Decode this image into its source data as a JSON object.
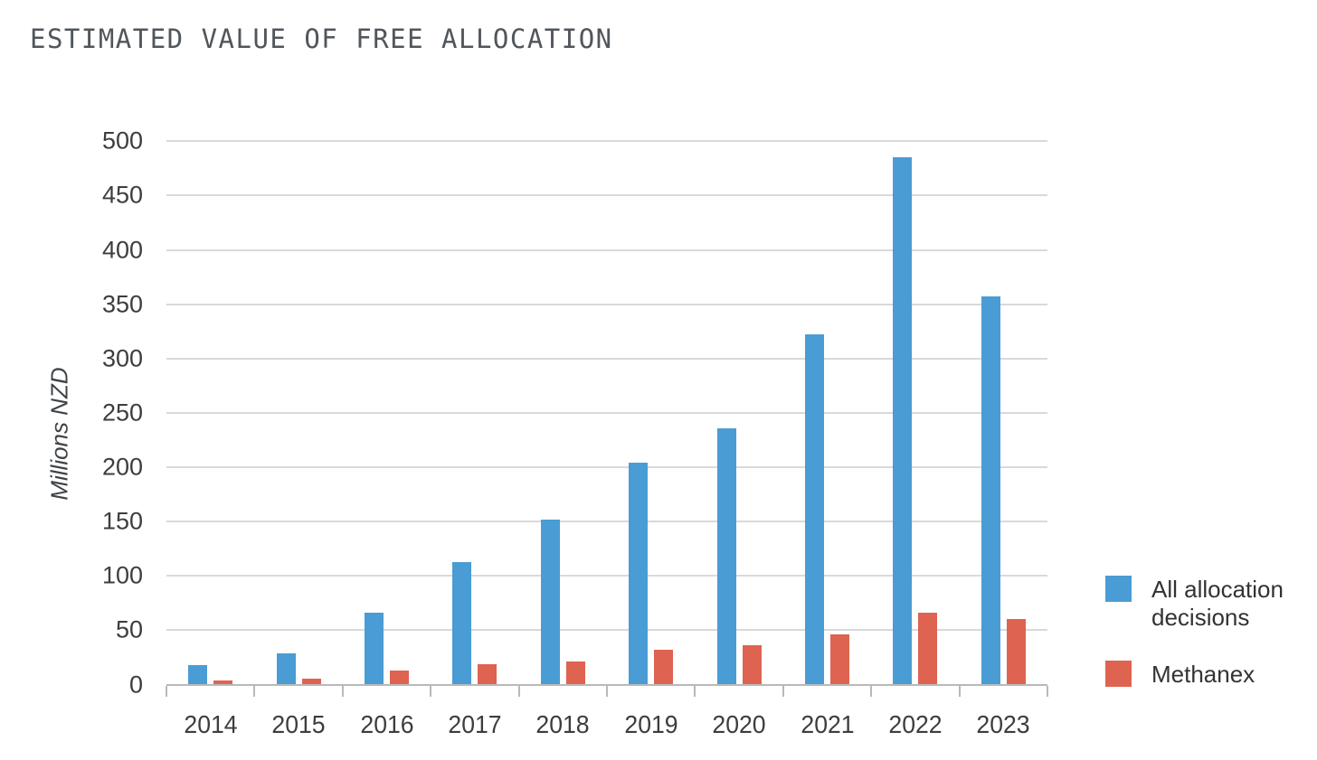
{
  "page": {
    "title": "ESTIMATED VALUE OF FREE ALLOCATION"
  },
  "chart_data": {
    "type": "bar",
    "title": "ESTIMATED VALUE OF FREE ALLOCATION",
    "xlabel": "",
    "ylabel": "Millions NZD",
    "ylim": [
      0,
      500
    ],
    "y_ticks": [
      0,
      50,
      100,
      150,
      200,
      250,
      300,
      350,
      400,
      450,
      500
    ],
    "grid": "horizontal-only",
    "legend_position": "right",
    "categories": [
      "2014",
      "2015",
      "2016",
      "2017",
      "2018",
      "2019",
      "2020",
      "2021",
      "2022",
      "2023"
    ],
    "series": [
      {
        "name": "All allocation decisions",
        "color": "#4A9CD4",
        "values": [
          18,
          29,
          66,
          113,
          152,
          204,
          236,
          322,
          485,
          357
        ]
      },
      {
        "name": "Methanex",
        "color": "#DE6350",
        "values": [
          4,
          5,
          13,
          19,
          21,
          32,
          36,
          46,
          66,
          60
        ]
      }
    ]
  },
  "colors": {
    "grid": "#D9D9D9",
    "axis": "#B9B9B9",
    "tick_label": "#3D3D3D",
    "title": "#50565B",
    "legend_text": "#333333"
  }
}
